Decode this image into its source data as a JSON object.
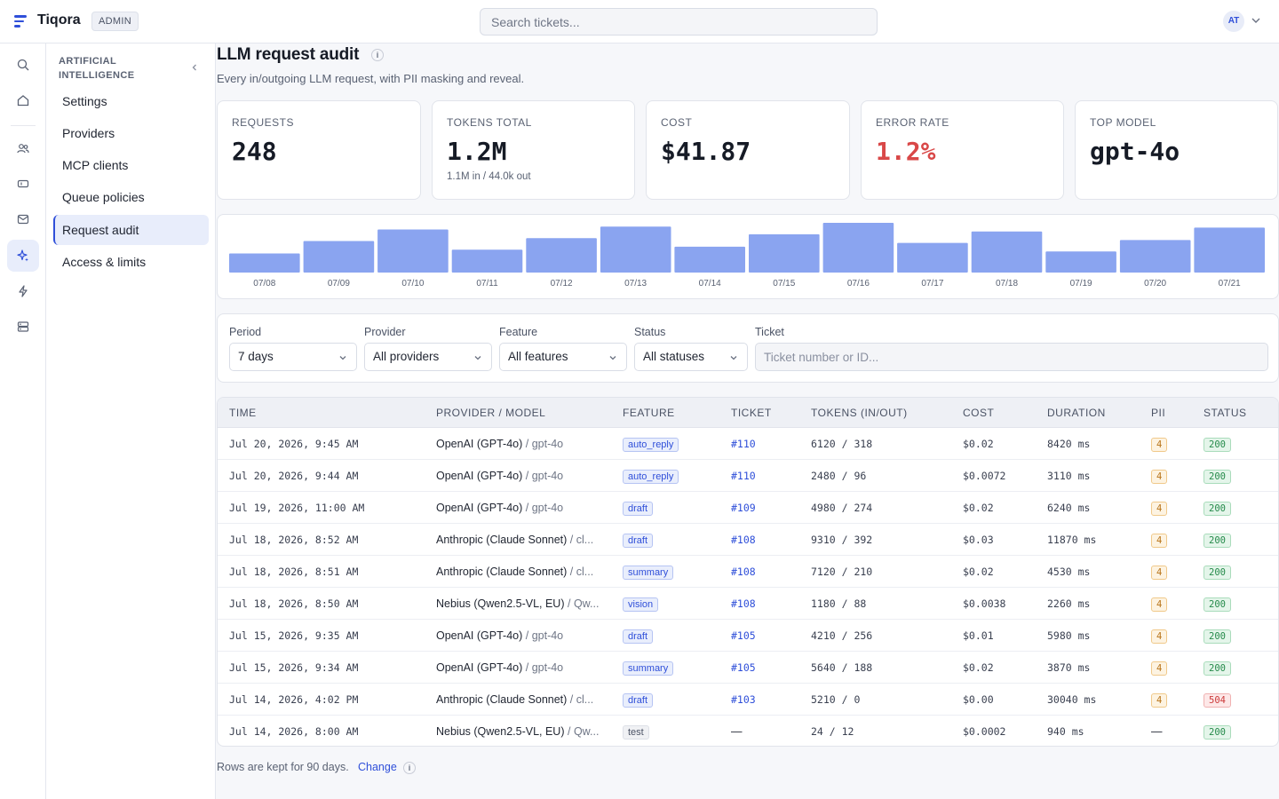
{
  "app": {
    "name": "Tiqora",
    "role_badge": "ADMIN",
    "user_initials": "AT"
  },
  "search": {
    "placeholder": "Search tickets..."
  },
  "rail": {
    "icons": [
      "search-icon",
      "home-icon",
      "users-icon",
      "ticket-icon",
      "mail-icon",
      "sparkle-icon",
      "bolt-icon",
      "server-icon"
    ],
    "active": "sparkle-icon"
  },
  "sidebar": {
    "section": "ARTIFICIAL INTELLIGENCE",
    "items": [
      {
        "label": "Settings",
        "active": false
      },
      {
        "label": "Providers",
        "active": false
      },
      {
        "label": "MCP clients",
        "active": false
      },
      {
        "label": "Queue policies",
        "active": false
      },
      {
        "label": "Request audit",
        "active": true
      },
      {
        "label": "Access & limits",
        "active": false
      }
    ]
  },
  "page": {
    "title": "LLM request audit",
    "info_glyph": "i",
    "subtitle": "Every in/outgoing LLM request, with PII masking and reveal."
  },
  "stats": [
    {
      "label": "REQUESTS",
      "value": "248",
      "sub": ""
    },
    {
      "label": "TOKENS TOTAL",
      "value": "1.2M",
      "sub": "1.1M in / 44.0k out"
    },
    {
      "label": "COST",
      "value": "$41.87",
      "sub": ""
    },
    {
      "label": "ERROR RATE",
      "value": "1.2%",
      "sub": "",
      "color": "#d94848"
    },
    {
      "label": "TOP MODEL",
      "value": "gpt-4o",
      "sub": ""
    }
  ],
  "chart_data": {
    "type": "bar",
    "categories": [
      "07/08",
      "07/09",
      "07/10",
      "07/11",
      "07/12",
      "07/13",
      "07/14",
      "07/15",
      "07/16",
      "07/17",
      "07/18",
      "07/19",
      "07/20",
      "07/21"
    ],
    "values": [
      20,
      33,
      45,
      24,
      36,
      48,
      27,
      40,
      52,
      31,
      43,
      22,
      34,
      47
    ],
    "bar_color": "#8aa4f0",
    "xlabel": "",
    "ylabel": ""
  },
  "filters": {
    "period": {
      "label": "Period",
      "value": "7 days"
    },
    "provider": {
      "label": "Provider",
      "value": "All providers"
    },
    "feature": {
      "label": "Feature",
      "value": "All features"
    },
    "status": {
      "label": "Status",
      "value": "All statuses"
    },
    "ticket": {
      "label": "Ticket",
      "placeholder": "Ticket number or ID..."
    }
  },
  "table": {
    "columns": [
      "TIME",
      "PROVIDER / MODEL",
      "FEATURE",
      "TICKET",
      "TOKENS (IN/OUT)",
      "COST",
      "DURATION",
      "PII",
      "STATUS"
    ],
    "rows": [
      {
        "time": "Jul 20, 2026, 9:45 AM",
        "provider": "OpenAI (GPT-4o)",
        "model": "/ gpt-4o",
        "feature": "auto_reply",
        "ticket": "#110",
        "tokens": "6120 / 318",
        "cost": "$0.02",
        "duration": "8420 ms",
        "pii": "4",
        "status": "200"
      },
      {
        "time": "Jul 20, 2026, 9:44 AM",
        "provider": "OpenAI (GPT-4o)",
        "model": "/ gpt-4o",
        "feature": "auto_reply",
        "ticket": "#110",
        "tokens": "2480 / 96",
        "cost": "$0.0072",
        "duration": "3110 ms",
        "pii": "4",
        "status": "200"
      },
      {
        "time": "Jul 19, 2026, 11:00 AM",
        "provider": "OpenAI (GPT-4o)",
        "model": "/ gpt-4o",
        "feature": "draft",
        "ticket": "#109",
        "tokens": "4980 / 274",
        "cost": "$0.02",
        "duration": "6240 ms",
        "pii": "4",
        "status": "200"
      },
      {
        "time": "Jul 18, 2026, 8:52 AM",
        "provider": "Anthropic (Claude Sonnet)",
        "model": "/ cl...",
        "feature": "draft",
        "ticket": "#108",
        "tokens": "9310 / 392",
        "cost": "$0.03",
        "duration": "11870 ms",
        "pii": "4",
        "status": "200"
      },
      {
        "time": "Jul 18, 2026, 8:51 AM",
        "provider": "Anthropic (Claude Sonnet)",
        "model": "/ cl...",
        "feature": "summary",
        "ticket": "#108",
        "tokens": "7120 / 210",
        "cost": "$0.02",
        "duration": "4530 ms",
        "pii": "4",
        "status": "200"
      },
      {
        "time": "Jul 18, 2026, 8:50 AM",
        "provider": "Nebius (Qwen2.5-VL, EU)",
        "model": "/ Qw...",
        "feature": "vision",
        "ticket": "#108",
        "tokens": "1180 / 88",
        "cost": "$0.0038",
        "duration": "2260 ms",
        "pii": "4",
        "status": "200"
      },
      {
        "time": "Jul 15, 2026, 9:35 AM",
        "provider": "OpenAI (GPT-4o)",
        "model": "/ gpt-4o",
        "feature": "draft",
        "ticket": "#105",
        "tokens": "4210 / 256",
        "cost": "$0.01",
        "duration": "5980 ms",
        "pii": "4",
        "status": "200"
      },
      {
        "time": "Jul 15, 2026, 9:34 AM",
        "provider": "OpenAI (GPT-4o)",
        "model": "/ gpt-4o",
        "feature": "summary",
        "ticket": "#105",
        "tokens": "5640 / 188",
        "cost": "$0.02",
        "duration": "3870 ms",
        "pii": "4",
        "status": "200"
      },
      {
        "time": "Jul 14, 2026, 4:02 PM",
        "provider": "Anthropic (Claude Sonnet)",
        "model": "/ cl...",
        "feature": "draft",
        "ticket": "#103",
        "tokens": "5210 / 0",
        "cost": "$0.00",
        "duration": "30040 ms",
        "pii": "4",
        "status": "504"
      },
      {
        "time": "Jul 14, 2026, 8:00 AM",
        "provider": "Nebius (Qwen2.5-VL, EU)",
        "model": "/ Qw...",
        "feature": "test",
        "ticket": "—",
        "tokens": "24 / 12",
        "cost": "$0.0002",
        "duration": "940 ms",
        "pii": "—",
        "status": "200"
      }
    ]
  },
  "footer": {
    "note": "Rows are kept for 90 days.",
    "link": "Change"
  }
}
